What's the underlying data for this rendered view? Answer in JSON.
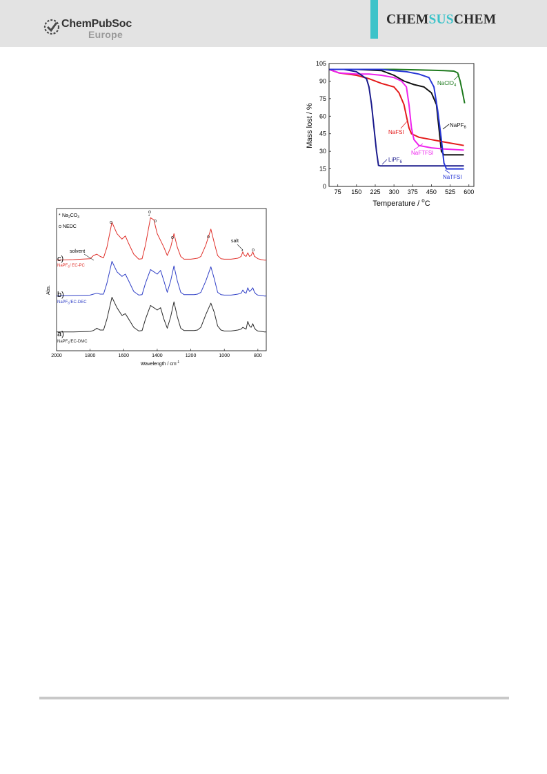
{
  "header": {
    "logo_title": "ChemPubSoc",
    "logo_sub": "Europe",
    "journal_left": "CHEM",
    "journal_mid": "SUS",
    "journal_right": "CHEM",
    "accent_color": "#3dc3c9"
  },
  "figure_ir": {
    "legend_star": "Na",
    "legend_star_sub": "2",
    "legend_star_tail": "CO",
    "legend_star_sub2": "3",
    "legend_circle": "NEDC",
    "ylabel": "Abs.",
    "xlabel": "Wavelength / cm",
    "xlabel_sup": "-1",
    "annot_solvent": "solvent",
    "annot_salt": "salt",
    "panel_c": "c)",
    "panel_b": "b)",
    "panel_a": "a)",
    "label_c": "NaPF",
    "label_c_sub": "6",
    "label_c_tail": "/ EC-PC",
    "label_b": "NaPF",
    "label_b_sub": "6",
    "label_b_tail": "/EC-DEC",
    "label_a": "NaPF",
    "label_a_sub": "6",
    "label_a_tail": "/EC-DMC",
    "xticks": [
      "2000",
      "1800",
      "1600",
      "1400",
      "1200",
      "1000",
      "800"
    ]
  },
  "figure_tga": {
    "ylabel": "Mass lost  / %",
    "xlabel": "Temperature / ",
    "xlabel_sup": "o",
    "xlabel_tail": "C",
    "xticks": [
      "75",
      "150",
      "225",
      "300",
      "375",
      "450",
      "525",
      "600"
    ],
    "yticks": [
      "0",
      "15",
      "30",
      "45",
      "60",
      "75",
      "90",
      "105"
    ],
    "labels": {
      "naclo4": "NaClO",
      "naclo4_sub": "4",
      "napf6": "NaPF",
      "napf6_sub": "6",
      "nafsi": "NaFSI",
      "naftfsi": "NaFTFSI",
      "lipf6": "LiPF",
      "lipf6_sub": "6",
      "natfsi": "NaTFSI"
    }
  },
  "chart_data": [
    {
      "type": "line",
      "title": "",
      "xlabel": "Wavelength / cm-1",
      "ylabel": "Abs.",
      "xlim": [
        2000,
        750
      ],
      "x_reversed": true,
      "series": [
        {
          "name": "NaPF6/ EC-PC",
          "color": "#e0302a",
          "offset": 2,
          "x": [
            2000,
            1900,
            1800,
            1780,
            1760,
            1740,
            1720,
            1700,
            1670,
            1640,
            1610,
            1590,
            1570,
            1540,
            1510,
            1490,
            1470,
            1440,
            1420,
            1400,
            1380,
            1360,
            1340,
            1320,
            1300,
            1280,
            1260,
            1240,
            1220,
            1200,
            1180,
            1160,
            1140,
            1110,
            1080,
            1060,
            1040,
            1020,
            1000,
            980,
            960,
            940,
            920,
            900,
            890,
            880,
            870,
            860,
            850,
            840,
            830,
            820,
            810,
            800,
            780,
            760,
            750
          ],
          "y": [
            0.02,
            0.03,
            0.05,
            0.12,
            0.15,
            0.1,
            0.07,
            0.3,
            0.85,
            0.6,
            0.48,
            0.55,
            0.38,
            0.15,
            0.04,
            0.05,
            0.35,
            0.95,
            0.9,
            0.6,
            0.45,
            0.3,
            0.12,
            0.3,
            0.6,
            0.3,
            0.1,
            0.04,
            0.04,
            0.04,
            0.05,
            0.06,
            0.1,
            0.35,
            0.7,
            0.4,
            0.12,
            0.05,
            0.04,
            0.04,
            0.04,
            0.05,
            0.06,
            0.1,
            0.2,
            0.12,
            0.1,
            0.18,
            0.1,
            0.12,
            0.2,
            0.1,
            0.08,
            0.05,
            0.03,
            0.02,
            0.02
          ]
        },
        {
          "name": "NaPF6/EC-DEC",
          "color": "#2f3fc6",
          "offset": 1,
          "x": [
            2000,
            1900,
            1800,
            1780,
            1760,
            1740,
            1720,
            1700,
            1670,
            1640,
            1610,
            1590,
            1570,
            1540,
            1510,
            1490,
            1470,
            1440,
            1420,
            1400,
            1380,
            1360,
            1340,
            1320,
            1300,
            1280,
            1260,
            1240,
            1220,
            1200,
            1180,
            1160,
            1140,
            1110,
            1080,
            1060,
            1040,
            1020,
            1000,
            980,
            960,
            940,
            920,
            900,
            890,
            880,
            870,
            860,
            850,
            840,
            830,
            820,
            810,
            800,
            780,
            760,
            750
          ],
          "y": [
            0.02,
            0.03,
            0.04,
            0.06,
            0.08,
            0.06,
            0.06,
            0.3,
            0.78,
            0.55,
            0.45,
            0.5,
            0.35,
            0.12,
            0.04,
            0.05,
            0.3,
            0.6,
            0.55,
            0.5,
            0.58,
            0.35,
            0.1,
            0.35,
            0.68,
            0.35,
            0.1,
            0.05,
            0.05,
            0.05,
            0.05,
            0.06,
            0.1,
            0.35,
            0.66,
            0.4,
            0.1,
            0.05,
            0.04,
            0.04,
            0.04,
            0.05,
            0.06,
            0.08,
            0.15,
            0.1,
            0.08,
            0.2,
            0.12,
            0.15,
            0.2,
            0.1,
            0.06,
            0.04,
            0.03,
            0.02,
            0.02
          ]
        },
        {
          "name": "NaPF6/EC-DMC",
          "color": "#2a2a2a",
          "offset": 0,
          "x": [
            2000,
            1900,
            1800,
            1780,
            1760,
            1740,
            1720,
            1700,
            1670,
            1640,
            1610,
            1590,
            1570,
            1540,
            1510,
            1490,
            1470,
            1440,
            1420,
            1400,
            1380,
            1360,
            1340,
            1320,
            1300,
            1280,
            1260,
            1240,
            1220,
            1200,
            1180,
            1160,
            1140,
            1110,
            1080,
            1060,
            1040,
            1020,
            1000,
            980,
            960,
            940,
            920,
            900,
            890,
            880,
            870,
            860,
            850,
            840,
            830,
            820,
            810,
            800,
            780,
            760,
            750
          ],
          "y": [
            0.02,
            0.02,
            0.03,
            0.05,
            0.1,
            0.06,
            0.06,
            0.3,
            0.78,
            0.55,
            0.38,
            0.42,
            0.3,
            0.12,
            0.04,
            0.05,
            0.3,
            0.6,
            0.55,
            0.5,
            0.55,
            0.3,
            0.1,
            0.35,
            0.68,
            0.35,
            0.1,
            0.05,
            0.05,
            0.05,
            0.05,
            0.06,
            0.12,
            0.4,
            0.65,
            0.45,
            0.15,
            0.06,
            0.04,
            0.04,
            0.04,
            0.05,
            0.06,
            0.08,
            0.12,
            0.1,
            0.08,
            0.25,
            0.15,
            0.12,
            0.2,
            0.1,
            0.06,
            0.04,
            0.03,
            0.02,
            0.02
          ]
        }
      ]
    },
    {
      "type": "line",
      "title": "",
      "xlabel": "Temperature / oC",
      "ylabel": "Mass lost  / %",
      "xlim": [
        40,
        620
      ],
      "ylim": [
        0,
        105
      ],
      "series": [
        {
          "name": "NaClO4",
          "color": "#1e7a1e",
          "x": [
            40,
            100,
            200,
            300,
            400,
            500,
            540,
            555,
            565,
            575,
            583
          ],
          "y": [
            100,
            100,
            100,
            100,
            99.5,
            99,
            98.5,
            97,
            90,
            80,
            71
          ]
        },
        {
          "name": "NaPF6",
          "color": "#111111",
          "x": [
            40,
            150,
            250,
            300,
            340,
            380,
            420,
            450,
            470,
            480,
            490,
            500,
            520,
            580
          ],
          "y": [
            100,
            100,
            99,
            95,
            90,
            87,
            85,
            80,
            70,
            50,
            30,
            27,
            27,
            27
          ]
        },
        {
          "name": "NaFSI",
          "color": "#e41a1a",
          "x": [
            40,
            80,
            150,
            200,
            250,
            300,
            320,
            340,
            350,
            360,
            370,
            380,
            400,
            450,
            500,
            580
          ],
          "y": [
            100,
            97,
            95,
            92,
            88,
            85,
            80,
            70,
            60,
            50,
            45,
            44,
            42,
            40,
            38,
            35
          ]
        },
        {
          "name": "NaFTFSI",
          "color": "#ee22ee",
          "x": [
            40,
            80,
            150,
            200,
            250,
            300,
            330,
            350,
            360,
            370,
            380,
            400,
            450,
            500,
            580
          ],
          "y": [
            100,
            97,
            96,
            96,
            95,
            93,
            90,
            85,
            70,
            50,
            40,
            35,
            33,
            32,
            31
          ]
        },
        {
          "name": "LiPF6",
          "color": "#1a1a8c",
          "x": [
            40,
            100,
            150,
            190,
            200,
            210,
            220,
            230,
            238,
            245,
            300,
            400,
            500,
            580
          ],
          "y": [
            100,
            100,
            98,
            92,
            85,
            70,
            50,
            30,
            18,
            17.5,
            17.5,
            17.5,
            17.5,
            17.5
          ]
        },
        {
          "name": "NaTFSI",
          "color": "#2636d6",
          "x": [
            40,
            150,
            250,
            300,
            350,
            400,
            440,
            460,
            475,
            490,
            500,
            510,
            530,
            580
          ],
          "y": [
            100,
            100,
            100,
            99,
            98,
            96,
            93,
            85,
            65,
            40,
            20,
            15,
            15,
            15
          ]
        }
      ]
    }
  ]
}
